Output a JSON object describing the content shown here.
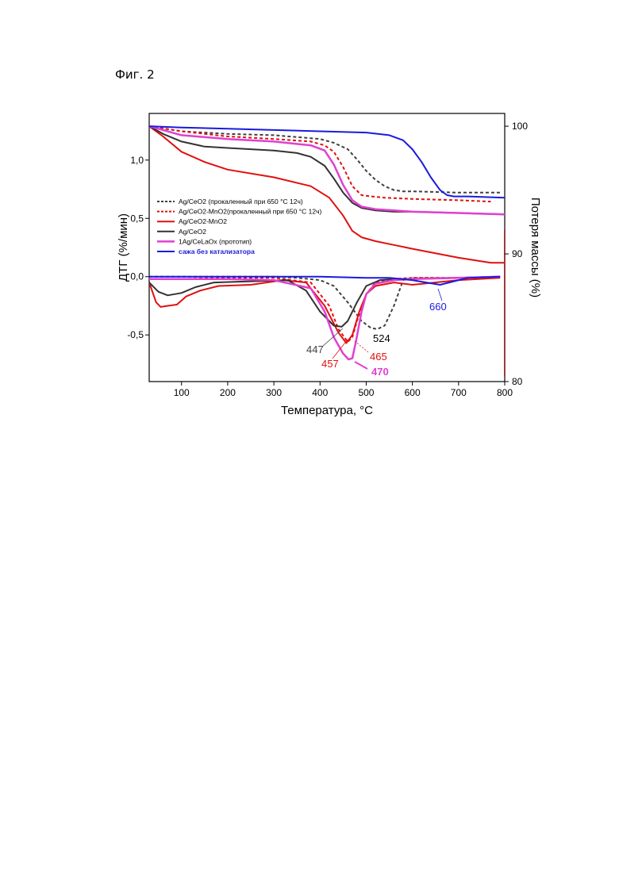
{
  "figure_label": "Фиг. 2",
  "chart_data": {
    "type": "line",
    "xlabel": "Температура, °C",
    "ylabel_left": "ДТГ (%/мин)",
    "ylabel_right": "Потеря массы (%)",
    "xlim": [
      30,
      800
    ],
    "ylim_left": [
      -0.9,
      1.4
    ],
    "ylim_right": [
      80,
      101
    ],
    "x_ticks": [
      "100",
      "200",
      "300",
      "400",
      "500",
      "600",
      "700",
      "800"
    ],
    "y_left_ticks": [
      "-0,5",
      "0,0",
      "0,5",
      "1,0"
    ],
    "y_right_ticks": [
      "80",
      "90",
      "100"
    ],
    "legend_position": "left",
    "series": [
      {
        "name": "Ag/CeO2 (прокаленный при 650 °C 12ч)",
        "color": "#404040",
        "dash": "dash",
        "width": 2,
        "tg_x": [
          30,
          100,
          200,
          300,
          400,
          430,
          460,
          480,
          500,
          520,
          540,
          560,
          580,
          600,
          700,
          790
        ],
        "tg_y": [
          100,
          99.6,
          99.4,
          99.3,
          99.0,
          98.7,
          98.2,
          97.4,
          96.5,
          95.8,
          95.3,
          95.0,
          94.9,
          94.9,
          94.8,
          94.8
        ],
        "dtg_x": [
          30,
          100,
          200,
          300,
          350,
          400,
          430,
          460,
          490,
          510,
          524,
          540,
          560,
          580,
          600,
          700,
          790
        ],
        "dtg_y": [
          0.0,
          0.0,
          0.0,
          0.0,
          -0.01,
          -0.03,
          -0.08,
          -0.22,
          -0.38,
          -0.44,
          -0.45,
          -0.42,
          -0.25,
          -0.03,
          -0.01,
          -0.01,
          0.0
        ]
      },
      {
        "name": "Ag/CeO2-MnO2(прокаленный при 650 °C 12ч)",
        "color": "#e01010",
        "dash": "dash",
        "width": 2,
        "tg_x": [
          30,
          100,
          200,
          300,
          380,
          410,
          430,
          450,
          470,
          490,
          510,
          540,
          600,
          700,
          770
        ],
        "tg_y": [
          100,
          99.6,
          99.2,
          99.0,
          98.8,
          98.5,
          98.0,
          96.8,
          95.3,
          94.6,
          94.5,
          94.4,
          94.3,
          94.2,
          94.1
        ],
        "dtg_x": [
          30,
          100,
          200,
          300,
          380,
          420,
          440,
          460,
          470,
          480,
          500,
          520,
          560,
          600,
          700,
          790
        ],
        "dtg_y": [
          -0.02,
          -0.02,
          -0.01,
          -0.01,
          -0.05,
          -0.25,
          -0.45,
          -0.56,
          -0.52,
          -0.38,
          -0.15,
          -0.05,
          -0.02,
          -0.01,
          -0.01,
          0.0
        ]
      },
      {
        "name": "Ag/CeO2-MnO2",
        "color": "#e01010",
        "dash": "solid",
        "width": 2,
        "tg_x": [
          30,
          60,
          100,
          150,
          200,
          300,
          380,
          420,
          450,
          470,
          490,
          520,
          560,
          600,
          700,
          770,
          800
        ],
        "tg_y": [
          100,
          99.2,
          98.0,
          97.2,
          96.6,
          96.0,
          95.3,
          94.4,
          93.0,
          91.8,
          91.3,
          91.0,
          90.7,
          90.4,
          89.7,
          89.3,
          89.3
        ],
        "dtg_x": [
          30,
          45,
          55,
          70,
          90,
          110,
          140,
          180,
          250,
          320,
          370,
          410,
          440,
          457,
          470,
          485,
          500,
          520,
          560,
          600,
          700,
          790
        ],
        "dtg_y": [
          -0.05,
          -0.22,
          -0.26,
          -0.25,
          -0.24,
          -0.17,
          -0.12,
          -0.08,
          -0.07,
          -0.03,
          -0.05,
          -0.25,
          -0.48,
          -0.57,
          -0.5,
          -0.3,
          -0.15,
          -0.08,
          -0.05,
          -0.07,
          -0.03,
          -0.01
        ]
      },
      {
        "name": "Ag/CeO2",
        "color": "#333333",
        "dash": "solid",
        "width": 2,
        "tg_x": [
          30,
          60,
          100,
          150,
          200,
          300,
          350,
          380,
          410,
          430,
          450,
          470,
          490,
          520,
          560,
          600,
          700,
          800
        ],
        "tg_y": [
          100,
          99.4,
          98.8,
          98.4,
          98.3,
          98.1,
          97.9,
          97.6,
          96.9,
          95.9,
          94.8,
          94.0,
          93.6,
          93.4,
          93.3,
          93.3,
          93.2,
          93.1
        ],
        "dtg_x": [
          30,
          50,
          70,
          100,
          130,
          170,
          250,
          330,
          370,
          400,
          430,
          447,
          460,
          480,
          500,
          530,
          560,
          600,
          700,
          790
        ],
        "dtg_y": [
          -0.05,
          -0.13,
          -0.16,
          -0.14,
          -0.09,
          -0.05,
          -0.04,
          -0.03,
          -0.12,
          -0.3,
          -0.42,
          -0.43,
          -0.38,
          -0.22,
          -0.08,
          -0.03,
          -0.02,
          -0.02,
          -0.01,
          0.0
        ]
      },
      {
        "name": "1Ag/CeLaOx (прототип)",
        "color": "#e040d0",
        "dash": "solid",
        "width": 2.5,
        "tg_x": [
          30,
          100,
          200,
          300,
          380,
          410,
          430,
          450,
          470,
          490,
          520,
          560,
          600,
          700,
          800
        ],
        "tg_y": [
          100,
          99.3,
          99.0,
          98.8,
          98.5,
          98.1,
          97.0,
          95.4,
          94.2,
          93.7,
          93.5,
          93.4,
          93.3,
          93.2,
          93.1
        ],
        "dtg_x": [
          30,
          100,
          200,
          300,
          380,
          410,
          430,
          450,
          462,
          470,
          478,
          490,
          500,
          520,
          560,
          600,
          700,
          790
        ],
        "dtg_y": [
          -0.02,
          -0.02,
          -0.02,
          -0.03,
          -0.1,
          -0.3,
          -0.52,
          -0.66,
          -0.71,
          -0.7,
          -0.55,
          -0.3,
          -0.15,
          -0.06,
          -0.03,
          -0.02,
          -0.01,
          0.0
        ]
      },
      {
        "name": "сажа без катализатора",
        "color": "#1a1ae0",
        "dash": "solid",
        "width": 2,
        "tg_x": [
          30,
          100,
          200,
          300,
          400,
          500,
          550,
          580,
          600,
          620,
          640,
          660,
          675,
          690,
          720,
          800
        ],
        "tg_y": [
          100,
          99.9,
          99.8,
          99.7,
          99.6,
          99.5,
          99.3,
          98.9,
          98.2,
          97.2,
          96.0,
          95.0,
          94.6,
          94.5,
          94.5,
          94.4
        ],
        "dtg_x": [
          30,
          100,
          200,
          300,
          400,
          500,
          550,
          600,
          630,
          660,
          690,
          720,
          790
        ],
        "dtg_y": [
          0.0,
          0.0,
          0.0,
          0.0,
          0.0,
          -0.01,
          -0.01,
          -0.03,
          -0.05,
          -0.07,
          -0.04,
          -0.01,
          0.0
        ]
      }
    ],
    "peak_labels": [
      {
        "text": "447",
        "color": "#404040"
      },
      {
        "text": "457",
        "color": "#e01010"
      },
      {
        "text": "465",
        "color": "#e01010"
      },
      {
        "text": "470",
        "color": "#e040d0"
      },
      {
        "text": "524",
        "color": "#000000"
      },
      {
        "text": "660",
        "color": "#1a1ae0"
      }
    ]
  }
}
